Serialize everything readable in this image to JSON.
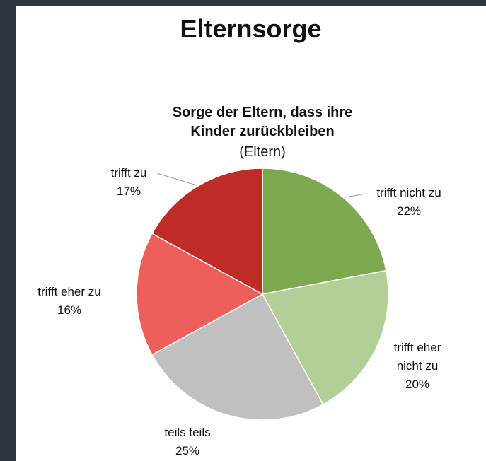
{
  "heading": "Elternsorge",
  "chart_data": {
    "type": "pie",
    "title": "Sorge der Eltern, dass ihre Kinder zurückbleiben",
    "subtitle": "(Eltern)",
    "categories": [
      "trifft nicht zu",
      "trifft eher nicht zu",
      "teils teils",
      "trifft eher zu",
      "trifft zu"
    ],
    "values": [
      22,
      20,
      25,
      16,
      17
    ],
    "value_labels": [
      "22%",
      "20%",
      "25%",
      "16%",
      "17%"
    ],
    "colors": [
      "#7ea84f",
      "#b2cf95",
      "#c0c0c0",
      "#ee5f5b",
      "#bf2b25"
    ]
  }
}
